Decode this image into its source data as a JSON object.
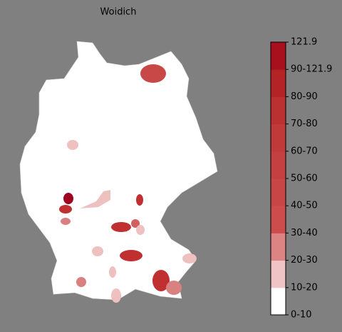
{
  "title": "Woidich",
  "colorbar": {
    "labels": [
      "0-10",
      "10-20",
      "20-30",
      "30-40",
      "40-50",
      "50-60",
      "60-70",
      "70-80",
      "80-90",
      "90-121.9",
      "121.9"
    ],
    "colors": [
      "#ffffff",
      "#f0c4c4",
      "#dc8484",
      "#cd4c4c",
      "#c94646",
      "#c54040",
      "#c13a3a",
      "#bb3030",
      "#b42426",
      "#a8101e"
    ]
  }
}
